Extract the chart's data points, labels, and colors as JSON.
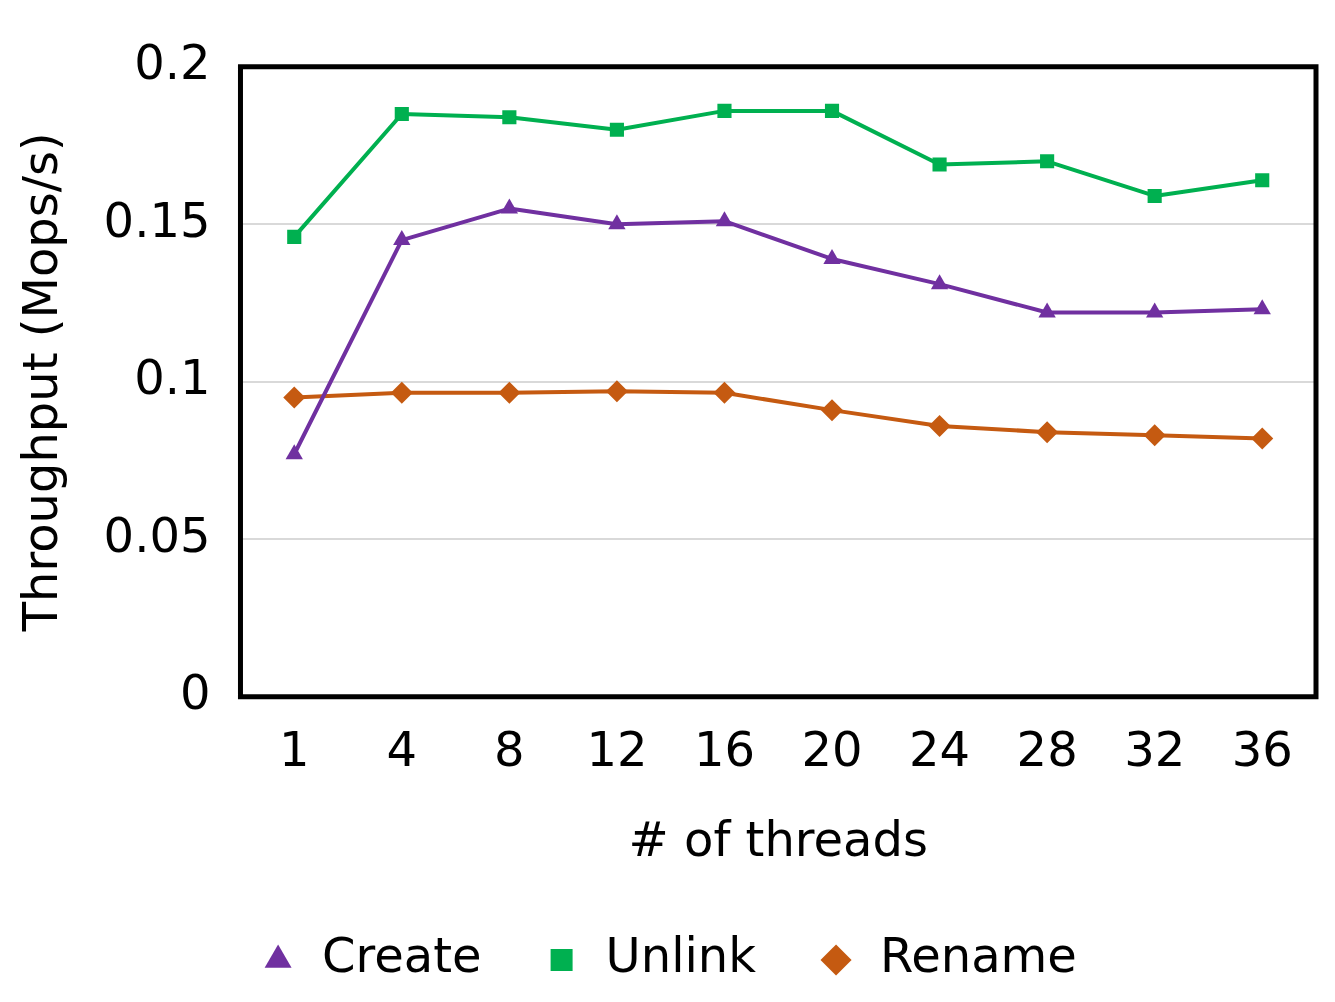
{
  "chart_data": {
    "type": "line",
    "xlabel": "# of threads",
    "ylabel": "Throughput (Mops/s)",
    "categories": [
      "1",
      "4",
      "8",
      "12",
      "16",
      "20",
      "24",
      "28",
      "32",
      "36"
    ],
    "series": [
      {
        "name": "Create",
        "color": "#7030a0",
        "marker": "triangle",
        "values": [
          0.077,
          0.145,
          0.155,
          0.15,
          0.151,
          0.139,
          0.131,
          0.122,
          0.122,
          0.123
        ]
      },
      {
        "name": "Unlink",
        "color": "#00b050",
        "marker": "square",
        "values": [
          0.146,
          0.185,
          0.184,
          0.18,
          0.186,
          0.186,
          0.169,
          0.17,
          0.159,
          0.164
        ]
      },
      {
        "name": "Rename",
        "color": "#c55a11",
        "marker": "diamond",
        "values": [
          0.095,
          0.0965,
          0.0965,
          0.097,
          0.0965,
          0.091,
          0.086,
          0.084,
          0.083,
          0.082
        ]
      }
    ],
    "ylim": [
      0,
      0.2
    ],
    "yticks": [
      0,
      0.05,
      0.1,
      0.15,
      0.2
    ],
    "grid": "y",
    "legend": "bottom",
    "line_style": "solid"
  }
}
